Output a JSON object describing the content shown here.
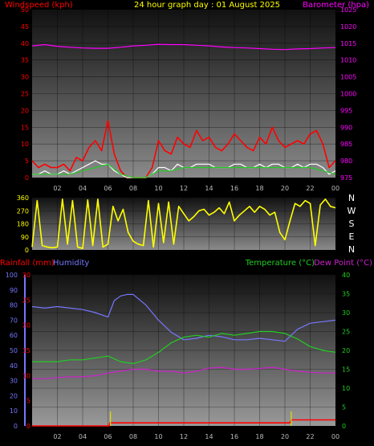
{
  "colors": {
    "wind_speed": "#ff0000",
    "wind_gust": "#ffffff",
    "wind_avg": "#22cc22",
    "barometer": "#ff00ff",
    "direction": "#ffff00",
    "rainfall": "#ff0000",
    "humidity": "#7777ff",
    "temperature": "#22cc22",
    "dewpoint": "#cc22cc",
    "title": "#ffff00"
  },
  "chart_data": [
    {
      "type": "line",
      "title": "24 hour graph day : 01 August 2025",
      "left_axis_label": "Windspeed (kph)",
      "right_axis_label": "Barometer (hpa)",
      "left_ticks": [
        0,
        5,
        10,
        15,
        20,
        25,
        30,
        35,
        40,
        45,
        50
      ],
      "right_ticks": [
        975,
        980,
        985,
        990,
        995,
        1000,
        1005,
        1010,
        1015,
        1020,
        1025
      ],
      "x_ticks": [
        "02",
        "04",
        "06",
        "08",
        "10",
        "12",
        "14",
        "16",
        "18",
        "20",
        "22",
        "00"
      ],
      "xlim": [
        0,
        24
      ],
      "ylim_left": [
        0,
        50
      ],
      "ylim_right": [
        975,
        1025
      ],
      "series": [
        {
          "name": "Barometer",
          "axis": "right",
          "x": [
            0,
            1,
            2,
            3,
            4,
            5,
            6,
            7,
            8,
            9,
            10,
            11,
            12,
            13,
            14,
            15,
            16,
            17,
            18,
            19,
            20,
            21,
            22,
            23,
            24
          ],
          "values": [
            1014.2,
            1014.6,
            1014.1,
            1013.8,
            1013.6,
            1013.5,
            1013.5,
            1013.8,
            1014.2,
            1014.4,
            1014.7,
            1014.6,
            1014.6,
            1014.4,
            1014.2,
            1013.9,
            1013.7,
            1013.6,
            1013.4,
            1013.2,
            1013.1,
            1013.3,
            1013.4,
            1013.6,
            1013.7
          ]
        },
        {
          "name": "Wind Gust",
          "axis": "left",
          "x": [
            0,
            0.5,
            1,
            1.5,
            2,
            2.5,
            3,
            3.5,
            4,
            4.5,
            5,
            5.5,
            6,
            6.5,
            7,
            7.5,
            8,
            8.5,
            9,
            9.5,
            10,
            10.5,
            11,
            11.5,
            12,
            12.5,
            13,
            13.5,
            14,
            14.5,
            15,
            15.5,
            16,
            16.5,
            17,
            17.5,
            18,
            18.5,
            19,
            19.5,
            20,
            20.5,
            21,
            21.5,
            22,
            22.5,
            23,
            23.5,
            24
          ],
          "values": [
            5,
            3,
            4,
            3,
            3,
            4,
            2,
            6,
            5,
            9,
            11,
            8,
            17,
            7,
            2,
            0,
            0,
            0,
            0,
            3,
            11,
            8,
            7,
            12,
            10,
            9,
            14,
            11,
            12,
            9,
            8,
            10,
            13,
            11,
            9,
            8,
            12,
            10,
            15,
            11,
            9,
            10,
            11,
            10,
            13,
            14,
            10,
            3,
            5
          ]
        },
        {
          "name": "Wind Speed",
          "axis": "left",
          "x": [
            0,
            0.5,
            1,
            1.5,
            2,
            2.5,
            3,
            3.5,
            4,
            4.5,
            5,
            5.5,
            6,
            6.5,
            7,
            7.5,
            8,
            8.5,
            9,
            9.5,
            10,
            10.5,
            11,
            11.5,
            12,
            12.5,
            13,
            13.5,
            14,
            14.5,
            15,
            15.5,
            16,
            16.5,
            17,
            17.5,
            18,
            18.5,
            19,
            19.5,
            20,
            20.5,
            21,
            21.5,
            22,
            22.5,
            23,
            23.5,
            24
          ],
          "values": [
            1,
            1,
            2,
            1,
            1,
            2,
            1,
            2,
            3,
            4,
            5,
            4,
            4,
            2,
            1,
            0,
            0,
            0,
            0,
            1,
            3,
            3,
            2,
            4,
            3,
            3,
            4,
            4,
            4,
            3,
            3,
            3,
            4,
            4,
            3,
            3,
            4,
            3,
            4,
            4,
            3,
            3,
            4,
            3,
            4,
            4,
            3,
            1,
            2
          ]
        },
        {
          "name": "Wind Avg",
          "axis": "left",
          "x": [
            0,
            1,
            2,
            3,
            4,
            5,
            6,
            7,
            8,
            9,
            10,
            11,
            12,
            13,
            14,
            15,
            16,
            17,
            18,
            19,
            20,
            21,
            22,
            23,
            24
          ],
          "values": [
            1,
            1,
            1,
            1,
            2,
            3,
            4,
            1,
            0,
            0,
            2,
            2,
            3,
            3,
            3,
            3,
            3,
            3,
            3,
            3,
            3,
            3,
            3,
            2,
            1
          ]
        }
      ]
    },
    {
      "type": "line",
      "title": "",
      "left_ticks": [
        0,
        90,
        180,
        270,
        360
      ],
      "compass": [
        "N",
        "W",
        "S",
        "E",
        "N"
      ],
      "x_ticks": [],
      "xlim": [
        0,
        24
      ],
      "ylim": [
        0,
        360
      ],
      "series": [
        {
          "name": "Wind Direction",
          "x": [
            0,
            0.4,
            0.8,
            1.2,
            1.6,
            2,
            2.4,
            2.8,
            3.2,
            3.6,
            4,
            4.4,
            4.8,
            5.2,
            5.6,
            6,
            6.4,
            6.8,
            7.2,
            7.6,
            8,
            8.4,
            8.8,
            9.2,
            9.6,
            10,
            10.4,
            10.8,
            11.2,
            11.6,
            12,
            12.4,
            12.8,
            13.2,
            13.6,
            14,
            14.4,
            14.8,
            15.2,
            15.6,
            16,
            16.4,
            16.8,
            17.2,
            17.6,
            18,
            18.4,
            18.8,
            19.2,
            19.6,
            20,
            20.4,
            20.8,
            21.2,
            21.6,
            22,
            22.4,
            22.8,
            23.2,
            23.6,
            24
          ],
          "values": [
            20,
            340,
            30,
            20,
            15,
            20,
            350,
            40,
            340,
            20,
            10,
            345,
            30,
            350,
            20,
            40,
            300,
            200,
            280,
            120,
            60,
            40,
            30,
            340,
            20,
            320,
            50,
            330,
            40,
            300,
            250,
            200,
            230,
            270,
            280,
            240,
            260,
            290,
            250,
            330,
            200,
            240,
            270,
            300,
            260,
            300,
            280,
            240,
            260,
            120,
            70,
            200,
            320,
            300,
            340,
            320,
            30,
            310,
            350,
            300,
            290
          ]
        }
      ]
    },
    {
      "type": "line",
      "title": "",
      "left_axis_label": "Rainfall (mm)",
      "humidity_label": "Humidity",
      "temperature_label": "Temperature (°C)",
      "dewpoint_label": "Dew Point (°C)",
      "humidity_ticks": [
        0,
        10,
        20,
        30,
        40,
        50,
        60,
        70,
        80,
        90,
        100
      ],
      "rain_ticks": [
        0,
        5,
        10,
        15,
        20,
        25,
        30
      ],
      "temp_ticks": [
        0,
        5,
        10,
        15,
        20,
        25,
        30,
        35,
        40
      ],
      "x_ticks": [
        "02",
        "04",
        "06",
        "08",
        "10",
        "12",
        "14",
        "16",
        "18",
        "20",
        "22",
        "00"
      ],
      "xlim": [
        0,
        24
      ],
      "ylim_humidity": [
        0,
        100
      ],
      "ylim_rain": [
        0,
        30
      ],
      "ylim_temp": [
        0,
        40
      ],
      "series": [
        {
          "name": "Humidity",
          "axis": "humidity",
          "x": [
            0,
            1,
            2,
            3,
            4,
            5,
            6,
            6.5,
            7,
            7.5,
            8,
            9,
            10,
            11,
            12,
            13,
            14,
            15,
            16,
            17,
            18,
            19,
            20,
            21,
            22,
            23,
            24
          ],
          "values": [
            79,
            78,
            79,
            78,
            77,
            75,
            72,
            83,
            86,
            87,
            87,
            80,
            70,
            62,
            57,
            58,
            60,
            59,
            57,
            57,
            58,
            57,
            56,
            64,
            68,
            69,
            70
          ]
        },
        {
          "name": "Temperature",
          "axis": "temp",
          "x": [
            0,
            1,
            2,
            3,
            4,
            5,
            6,
            7,
            8,
            9,
            10,
            11,
            12,
            13,
            14,
            15,
            16,
            17,
            18,
            19,
            20,
            21,
            22,
            23,
            24
          ],
          "values": [
            17,
            17,
            17,
            17.5,
            17.5,
            18,
            18.5,
            17,
            16.5,
            17.5,
            19.5,
            22,
            23.5,
            24,
            23.5,
            24.5,
            24,
            24.5,
            25,
            25,
            24.5,
            23,
            21,
            20,
            19.5
          ]
        },
        {
          "name": "Dew Point",
          "axis": "temp",
          "x": [
            0,
            1,
            2,
            3,
            4,
            5,
            6,
            7,
            8,
            9,
            10,
            11,
            12,
            13,
            14,
            15,
            16,
            17,
            18,
            19,
            20,
            21,
            22,
            23,
            24
          ],
          "values": [
            12.5,
            12.5,
            12.8,
            13,
            13,
            13.3,
            14,
            14.5,
            15,
            15,
            14.5,
            14.5,
            14,
            14.5,
            15.3,
            15.5,
            15,
            15,
            15.2,
            15.5,
            15,
            14.5,
            14.2,
            14,
            14
          ]
        },
        {
          "name": "Rainfall",
          "axis": "rain",
          "x": [
            0,
            6.1,
            6.15,
            6.2,
            20.4,
            20.5,
            24
          ],
          "values": [
            0,
            0,
            0.6,
            0.6,
            0.6,
            1.2,
            1.2
          ]
        }
      ],
      "rain_rate_spikes": [
        6.2,
        20.5
      ]
    }
  ]
}
